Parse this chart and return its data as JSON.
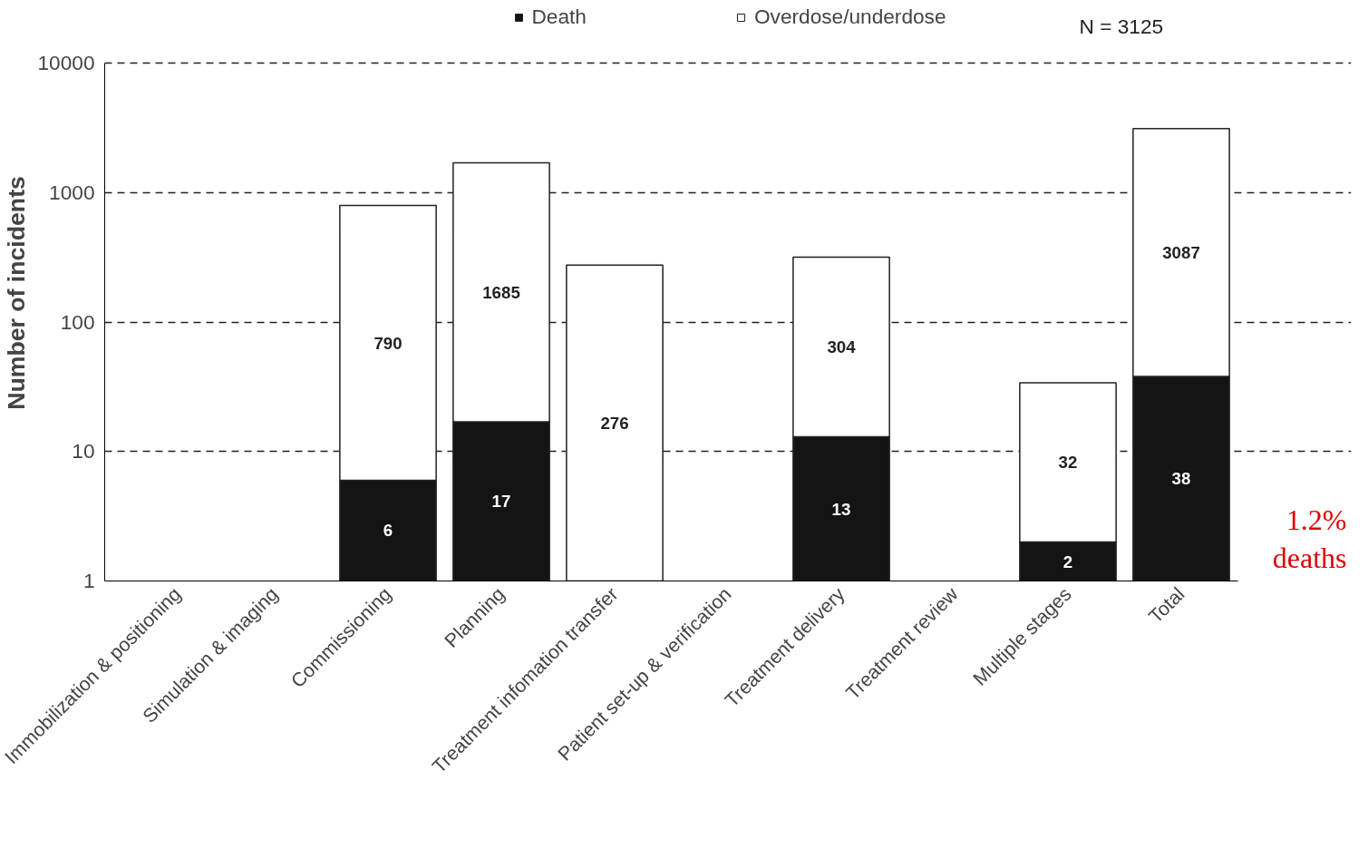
{
  "chart_data": {
    "type": "bar",
    "stacked": true,
    "log": "y",
    "ylabel": "Number of incidents",
    "categories": [
      "Immobilization & positioning",
      "Simulation & imaging",
      "Commissioning",
      "Planning",
      "Treatment infomation transfer",
      "Patient set-up & verification",
      "Treatment delivery",
      "Treatment review",
      "Multiple stages",
      "Total"
    ],
    "series": [
      {
        "name": "Death",
        "color": "#141414",
        "values": [
          null,
          null,
          6,
          17,
          null,
          null,
          13,
          null,
          2,
          38
        ]
      },
      {
        "name": "Overdose/underdose",
        "color": "#ffffff",
        "values": [
          null,
          null,
          790,
          1685,
          276,
          null,
          304,
          null,
          32,
          3087
        ]
      }
    ],
    "ylim": [
      1,
      10000
    ],
    "yticks": [
      1,
      10,
      100,
      1000,
      10000
    ],
    "grid": "y",
    "legend": "top",
    "marker": "square",
    "data_labels": true,
    "annotations": [
      "N = 3125",
      "1.2% deaths"
    ]
  }
}
